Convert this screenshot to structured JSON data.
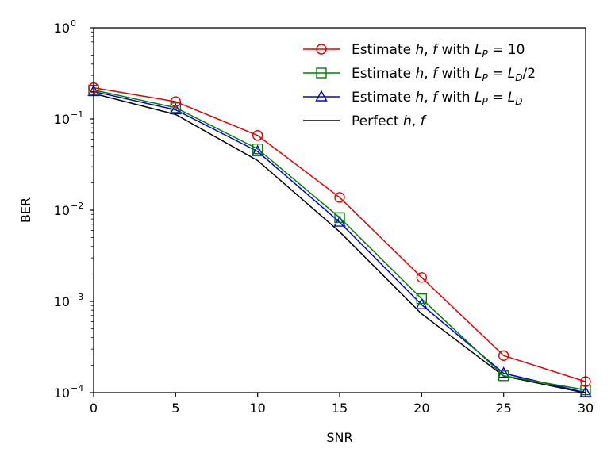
{
  "chart_data": {
    "type": "line",
    "xlabel": "SNR",
    "ylabel": "BER",
    "xlim": [
      0,
      30
    ],
    "ylim": [
      0.0001,
      1
    ],
    "yscale": "log",
    "x_ticks": [
      "0",
      "5",
      "10",
      "15",
      "20",
      "25",
      "30"
    ],
    "y_ticks": [
      {
        "base": "10",
        "exp": "0"
      },
      {
        "base": "10",
        "exp": "−1"
      },
      {
        "base": "10",
        "exp": "−2"
      },
      {
        "base": "10",
        "exp": "−3"
      },
      {
        "base": "10",
        "exp": "−4"
      }
    ],
    "grid": false,
    "legend_position": "top-right",
    "x": [
      0,
      5,
      10,
      15,
      20,
      25,
      30
    ],
    "series": [
      {
        "name": "Estimate h, f with L_P = 10",
        "legend_parts": [
          {
            "t": "Estimate ",
            "i": false
          },
          {
            "t": "h",
            "i": true
          },
          {
            "t": ", ",
            "i": false
          },
          {
            "t": "f",
            "i": true
          },
          {
            "t": " with ",
            "i": false
          },
          {
            "t": "L",
            "i": true
          },
          {
            "t": "P",
            "i": true,
            "sub": true
          },
          {
            "t": " = 10",
            "i": false
          }
        ],
        "color": "#e00000",
        "marker": "circle",
        "values": [
          0.22,
          0.155,
          0.066,
          0.0138,
          0.00183,
          0.000255,
          0.000132
        ]
      },
      {
        "name": "Estimate h, f with L_P = L_D/2",
        "legend_parts": [
          {
            "t": "Estimate ",
            "i": false
          },
          {
            "t": "h",
            "i": true
          },
          {
            "t": ", ",
            "i": false
          },
          {
            "t": "f",
            "i": true
          },
          {
            "t": " with ",
            "i": false
          },
          {
            "t": "L",
            "i": true
          },
          {
            "t": "P",
            "i": true,
            "sub": true
          },
          {
            "t": " = ",
            "i": false
          },
          {
            "t": "L",
            "i": true
          },
          {
            "t": "D",
            "i": true,
            "sub": true
          },
          {
            "t": "/2",
            "i": false
          }
        ],
        "color": "#008000",
        "marker": "square",
        "values": [
          0.208,
          0.133,
          0.047,
          0.0083,
          0.00107,
          0.000153,
          0.000107
        ]
      },
      {
        "name": "Estimate h, f with L_P = L_D",
        "legend_parts": [
          {
            "t": "Estimate ",
            "i": false
          },
          {
            "t": "h",
            "i": true
          },
          {
            "t": ", ",
            "i": false
          },
          {
            "t": "f",
            "i": true
          },
          {
            "t": " with ",
            "i": false
          },
          {
            "t": "L",
            "i": true
          },
          {
            "t": "P",
            "i": true,
            "sub": true
          },
          {
            "t": " = ",
            "i": false
          },
          {
            "t": "L",
            "i": true
          },
          {
            "t": "D",
            "i": true,
            "sub": true
          }
        ],
        "color": "#0000e0",
        "marker": "triangle",
        "values": [
          0.2,
          0.126,
          0.044,
          0.0074,
          0.00092,
          0.000163,
          0.0001
        ]
      },
      {
        "name": "Perfect h, f",
        "legend_parts": [
          {
            "t": "Perfect ",
            "i": false
          },
          {
            "t": "h",
            "i": true
          },
          {
            "t": ", ",
            "i": false
          },
          {
            "t": "f",
            "i": true
          }
        ],
        "color": "#000000",
        "marker": "none",
        "values": [
          0.19,
          0.112,
          0.035,
          0.0058,
          0.00073,
          0.000152,
          9.9e-05
        ]
      }
    ]
  }
}
